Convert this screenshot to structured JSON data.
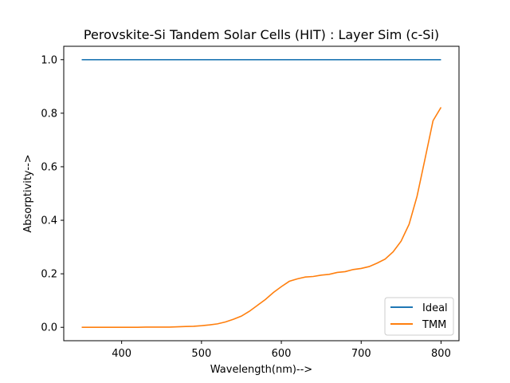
{
  "chart_data": {
    "type": "line",
    "title": "Perovskite-Si Tandem Solar Cells (HIT) : Layer Sim (c-Si)",
    "xlabel": "Wavelength(nm)-->",
    "ylabel": "Absorptivity-->",
    "xlim": [
      327.5,
      822.5
    ],
    "ylim": [
      -0.05,
      1.05
    ],
    "xticks": [
      400,
      500,
      600,
      700,
      800
    ],
    "xtick_labels": [
      "400",
      "500",
      "600",
      "700",
      "800"
    ],
    "yticks": [
      0.0,
      0.2,
      0.4,
      0.6,
      0.8,
      1.0
    ],
    "ytick_labels": [
      "0.0",
      "0.2",
      "0.4",
      "0.6",
      "0.8",
      "1.0"
    ],
    "grid": false,
    "legend_position": "lower-right",
    "series": [
      {
        "name": "Ideal",
        "color": "#1f77b4",
        "x": [
          350,
          800
        ],
        "y": [
          1.0,
          1.0
        ]
      },
      {
        "name": "TMM",
        "color": "#ff7f0e",
        "x": [
          350,
          360,
          370,
          380,
          390,
          400,
          410,
          420,
          430,
          440,
          450,
          460,
          470,
          480,
          490,
          500,
          510,
          520,
          530,
          540,
          550,
          560,
          570,
          580,
          590,
          600,
          610,
          620,
          630,
          640,
          650,
          660,
          670,
          680,
          690,
          700,
          710,
          720,
          730,
          740,
          750,
          760,
          770,
          780,
          790,
          800
        ],
        "y": [
          0.0,
          0.0,
          0.0,
          0.0,
          0.0,
          0.0,
          0.0,
          0.0,
          0.001,
          0.001,
          0.001,
          0.001,
          0.002,
          0.003,
          0.004,
          0.006,
          0.009,
          0.013,
          0.02,
          0.03,
          0.042,
          0.06,
          0.082,
          0.104,
          0.13,
          0.152,
          0.172,
          0.181,
          0.188,
          0.19,
          0.195,
          0.198,
          0.205,
          0.208,
          0.216,
          0.22,
          0.227,
          0.24,
          0.255,
          0.282,
          0.322,
          0.385,
          0.49,
          0.63,
          0.772,
          0.822
        ]
      }
    ]
  }
}
